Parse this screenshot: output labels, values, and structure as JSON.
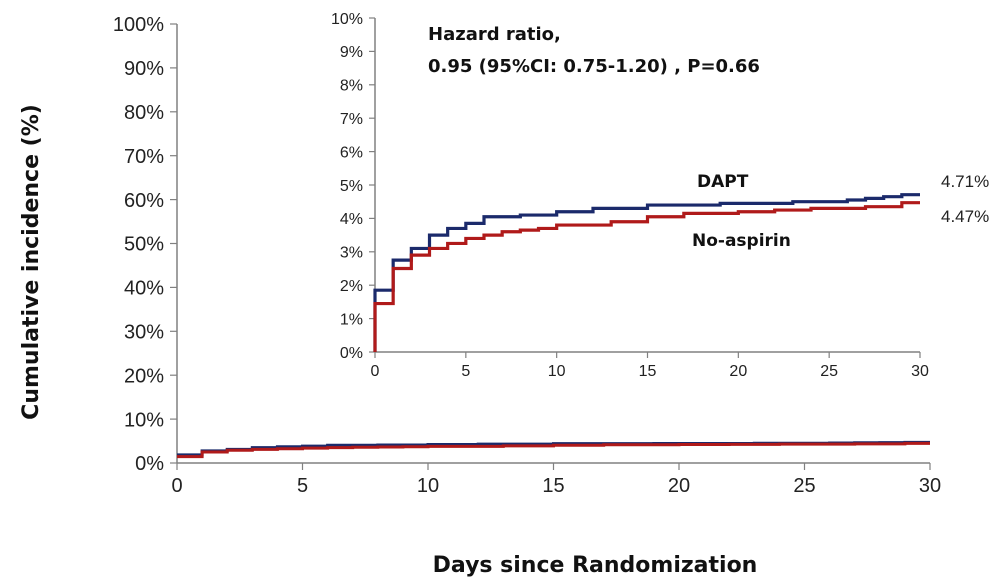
{
  "colors": {
    "dapt": "#1b2a6b",
    "no_aspirin": "#b01a1a",
    "axis": "#808080"
  },
  "chart_data": [
    {
      "type": "line",
      "step": true,
      "xlabel": "Days since Randomization",
      "ylabel": "Cumulative incidence (%)",
      "xlim": [
        0,
        30
      ],
      "ylim": [
        0,
        100
      ],
      "x_ticks": [
        0,
        5,
        10,
        15,
        20,
        25,
        30
      ],
      "y_ticks": [
        0,
        10,
        20,
        30,
        40,
        50,
        60,
        70,
        80,
        90,
        100
      ],
      "y_tick_suffix": "%",
      "series": [
        {
          "key": "dapt",
          "color": "#1b2a6b",
          "x": [
            0,
            1,
            2,
            3,
            4,
            5,
            6,
            8,
            10,
            12,
            15,
            19,
            23,
            26,
            27,
            28,
            29,
            30
          ],
          "y": [
            1.85,
            2.75,
            3.1,
            3.5,
            3.7,
            3.85,
            4.05,
            4.1,
            4.2,
            4.3,
            4.4,
            4.45,
            4.5,
            4.55,
            4.6,
            4.65,
            4.71,
            4.71
          ]
        },
        {
          "key": "no_aspirin",
          "color": "#b01a1a",
          "x": [
            0,
            1,
            2,
            3,
            4,
            5,
            6,
            7,
            8,
            9,
            10,
            13,
            15,
            17,
            20,
            22,
            24,
            27,
            29,
            30
          ],
          "y": [
            1.45,
            2.5,
            2.9,
            3.1,
            3.25,
            3.4,
            3.5,
            3.6,
            3.65,
            3.7,
            3.8,
            3.9,
            4.05,
            4.15,
            4.2,
            4.25,
            4.3,
            4.35,
            4.47,
            4.47
          ]
        }
      ]
    },
    {
      "type": "line",
      "step": true,
      "inset": true,
      "xlim": [
        0,
        30
      ],
      "ylim": [
        0,
        10
      ],
      "x_ticks": [
        0,
        5,
        10,
        15,
        20,
        25,
        30
      ],
      "y_ticks": [
        0,
        1,
        2,
        3,
        4,
        5,
        6,
        7,
        8,
        9,
        10
      ],
      "y_tick_suffix": "%",
      "annotation_line1": "Hazard ratio,",
      "annotation_line2": "0.95 (95%CI: 0.75-1.20) , P=0.66",
      "series": [
        {
          "key": "dapt",
          "name": "DAPT",
          "end_label": "4.71%",
          "color": "#1b2a6b",
          "x": [
            0,
            1,
            2,
            3,
            4,
            5,
            6,
            8,
            10,
            12,
            15,
            19,
            23,
            26,
            27,
            28,
            29,
            30
          ],
          "y": [
            1.85,
            2.75,
            3.1,
            3.5,
            3.7,
            3.85,
            4.05,
            4.1,
            4.2,
            4.3,
            4.4,
            4.45,
            4.5,
            4.55,
            4.6,
            4.65,
            4.71,
            4.71
          ]
        },
        {
          "key": "no_aspirin",
          "name": "No-aspirin",
          "end_label": "4.47%",
          "color": "#b01a1a",
          "x": [
            0,
            1,
            2,
            3,
            4,
            5,
            6,
            7,
            8,
            9,
            10,
            13,
            15,
            17,
            20,
            22,
            24,
            27,
            29,
            30
          ],
          "y": [
            1.45,
            2.5,
            2.9,
            3.1,
            3.25,
            3.4,
            3.5,
            3.6,
            3.65,
            3.7,
            3.8,
            3.9,
            4.05,
            4.15,
            4.2,
            4.25,
            4.3,
            4.35,
            4.47,
            4.47
          ]
        }
      ]
    }
  ]
}
